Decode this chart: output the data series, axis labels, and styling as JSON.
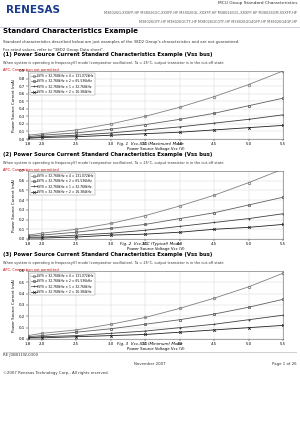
{
  "section_title": "Standard Characteristics Example",
  "section_desc1": "Standard characteristics described below are just examples of the 38D2 Group's characteristics and are not guaranteed.",
  "section_desc2": "For rated values, refer to \"38D2 Group Data sheet\".",
  "header_right_line1": "MCU Group Standard Characteristics",
  "header_right_line2": "M38026G-XXXFP-HP M38026GC-XXXFP-HP M38026GL-XXXFP-HP M38026GCL-XXXFP-HP M38026GM-XXXFP-HP",
  "header_right_line3": "M38026GTF-HP M38026GCTF-HP M38026GCGTF-HP M38026GG4GFP-HP M38026G4GP-HP",
  "chart1_title": "(1) Power Source Current Standard Characteristics Example (Vss bus)",
  "chart1_cond": "When system is operating in frequency(f) mode (comparator oscillation), Ta = 25°C, output transistor is in the cut-off state",
  "chart1_subcond": "APC, Connection not permitted",
  "chart1_xlabel": "Power Source Voltage Vcc (V)",
  "chart1_ylabel": "Power Source Current (mA)",
  "chart1_caption": "Fig. 1  Vcc-ICC (Maximum) Mode",
  "chart2_title": "(2) Power Source Current Standard Characteristics Example (Vss bus)",
  "chart2_cond": "When system is operating in frequency(f) mode (comparator oscillation), Ta = 25°C, output transistor is in the cut-off state",
  "chart2_subcond": "APC, Connection not permitted",
  "chart2_xlabel": "Power Source Voltage Vcc (V)",
  "chart2_ylabel": "Power Source Current (mA)",
  "chart2_caption": "Fig. 2  Vcc-ICC (Typical) Mode",
  "chart3_title": "(3) Power Source Current Standard Characteristics Example (Vss bus)",
  "chart3_cond": "When system is operating in frequency(f) mode (comparator oscillation), Ta = 25°C, output transistor is in the cut-off state",
  "chart3_subcond": "APC, Connection not permitted",
  "chart3_xlabel": "Power Source Voltage Vcc (V)",
  "chart3_ylabel": "Power Source Current (mA)",
  "chart3_caption": "Fig. 3  Vcc-ICC (Minimum) Mode",
  "vcc_x": [
    1.8,
    2.0,
    2.5,
    3.0,
    3.5,
    4.0,
    4.5,
    5.0,
    5.5
  ],
  "series_labels": [
    "fSYS = 32.768kHz × 4 = 131.072kHz",
    "fSYS = 32.768kHz × 2 = 65.536kHz",
    "fSYS = 32.768kHz × 1 = 32.768kHz",
    "fSYS = 32.768kHz ÷ 2 = 16.384kHz"
  ],
  "series_markers": [
    "o",
    "s",
    "+",
    "x"
  ],
  "series_colors": [
    "#808080",
    "#606060",
    "#404040",
    "#202020"
  ],
  "chart1_data": [
    [
      0.05,
      0.07,
      0.12,
      0.2,
      0.3,
      0.42,
      0.56,
      0.72,
      0.9
    ],
    [
      0.03,
      0.05,
      0.08,
      0.13,
      0.19,
      0.26,
      0.34,
      0.44,
      0.54
    ],
    [
      0.02,
      0.03,
      0.05,
      0.08,
      0.12,
      0.16,
      0.21,
      0.26,
      0.32
    ],
    [
      0.01,
      0.02,
      0.03,
      0.05,
      0.07,
      0.09,
      0.12,
      0.15,
      0.18
    ]
  ],
  "chart2_data": [
    [
      0.04,
      0.06,
      0.1,
      0.16,
      0.24,
      0.34,
      0.45,
      0.58,
      0.72
    ],
    [
      0.03,
      0.04,
      0.07,
      0.11,
      0.15,
      0.21,
      0.27,
      0.35,
      0.43
    ],
    [
      0.02,
      0.02,
      0.04,
      0.06,
      0.09,
      0.13,
      0.17,
      0.21,
      0.26
    ],
    [
      0.01,
      0.01,
      0.02,
      0.04,
      0.05,
      0.07,
      0.1,
      0.12,
      0.15
    ]
  ],
  "chart3_data": [
    [
      0.03,
      0.05,
      0.08,
      0.13,
      0.19,
      0.27,
      0.36,
      0.46,
      0.58
    ],
    [
      0.02,
      0.03,
      0.06,
      0.09,
      0.13,
      0.17,
      0.22,
      0.28,
      0.35
    ],
    [
      0.01,
      0.02,
      0.03,
      0.05,
      0.07,
      0.1,
      0.13,
      0.17,
      0.21
    ],
    [
      0.01,
      0.01,
      0.02,
      0.03,
      0.04,
      0.06,
      0.08,
      0.1,
      0.12
    ]
  ],
  "xlim": [
    1.8,
    5.5
  ],
  "xticks": [
    1.8,
    2.0,
    2.5,
    3.0,
    3.5,
    4.0,
    4.5,
    5.0,
    5.5
  ],
  "xtick_labels": [
    "1.8",
    "2.0",
    "2.5",
    "3.0",
    "3.5",
    "4.0",
    "4.5",
    "5.0",
    "5.5"
  ],
  "ylim1": [
    0.0,
    0.9
  ],
  "yticks1": [
    0.0,
    0.1,
    0.2,
    0.3,
    0.4,
    0.5,
    0.6,
    0.7,
    0.8,
    0.9
  ],
  "ylim2": [
    0.0,
    0.7
  ],
  "yticks2": [
    0.0,
    0.1,
    0.2,
    0.3,
    0.4,
    0.5,
    0.6,
    0.7
  ],
  "ylim3": [
    0.0,
    0.6
  ],
  "yticks3": [
    0.0,
    0.1,
    0.2,
    0.3,
    0.4,
    0.5,
    0.6
  ],
  "footer_left1": "RE J06B11W-0300",
  "footer_left2": "©2007 Renesas Technology Corp., All rights reserved.",
  "footer_center": "November 2007",
  "footer_right": "Page 1 of 26",
  "bg_color": "#ffffff",
  "grid_color": "#d0d0d0",
  "header_line_color": "#000080"
}
